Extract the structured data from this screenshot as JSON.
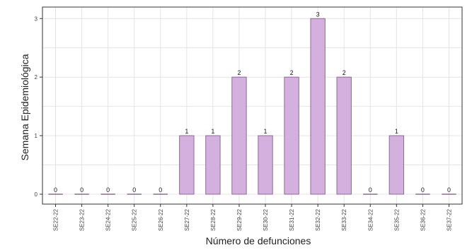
{
  "chart_data": {
    "type": "bar",
    "title": "",
    "xlabel": "Número de defunciones",
    "ylabel": "Semana Epidemiológica",
    "categories": [
      "SE22-22",
      "SE23-22",
      "SE24-22",
      "SE25-22",
      "SE26-22",
      "SE27-22",
      "SE28-22",
      "SE29-22",
      "SE30-22",
      "SE31-22",
      "SE32-22",
      "SE33-22",
      "SE34-22",
      "SE35-22",
      "SE36-22",
      "SE37-22"
    ],
    "values": [
      0,
      0,
      0,
      0,
      0,
      1,
      1,
      2,
      1,
      2,
      3,
      2,
      0,
      1,
      0,
      0
    ],
    "ylim": [
      0,
      3.1
    ],
    "yticks": [
      0,
      1,
      2,
      3
    ],
    "grid": true,
    "colors": {
      "bar_fill": "#d3b0dd",
      "bar_stroke": "#8e6a9a",
      "grid": "#e4e4e4",
      "axis": "#333333"
    }
  }
}
